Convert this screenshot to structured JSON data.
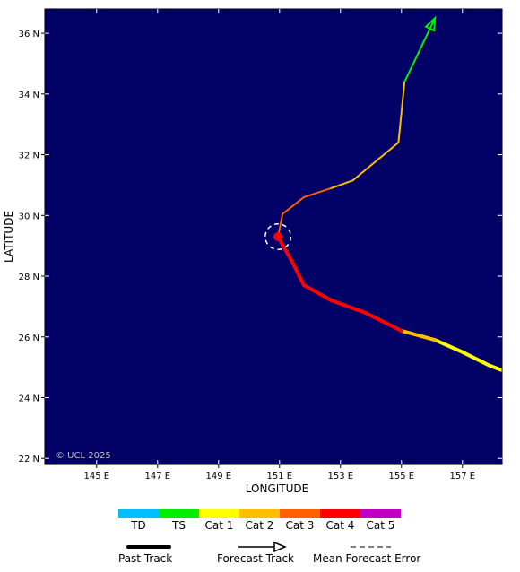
{
  "map": {
    "xlabel": "LONGITUDE",
    "ylabel": "LATITUDE",
    "copyright": "© UCL 2025",
    "background_color": "#000066",
    "lon_range": [
      143.3,
      158.3
    ],
    "lat_range": [
      21.8,
      36.8
    ],
    "lon_ticks": [
      {
        "value": 145,
        "label": "145 E"
      },
      {
        "value": 147,
        "label": "147 E"
      },
      {
        "value": 149,
        "label": "149 E"
      },
      {
        "value": 151,
        "label": "151 E"
      },
      {
        "value": 153,
        "label": "153 E"
      },
      {
        "value": 155,
        "label": "155 E"
      },
      {
        "value": 157,
        "label": "157 E"
      }
    ],
    "lat_ticks": [
      {
        "value": 22,
        "label": "22 N"
      },
      {
        "value": 24,
        "label": "24 N"
      },
      {
        "value": 26,
        "label": "26 N"
      },
      {
        "value": 28,
        "label": "28 N"
      },
      {
        "value": 30,
        "label": "30 N"
      },
      {
        "value": 32,
        "label": "32 N"
      },
      {
        "value": 34,
        "label": "34 N"
      },
      {
        "value": 36,
        "label": "36 N"
      }
    ],
    "past_track": [
      {
        "lon": 158.3,
        "lat": 24.9,
        "cat": "TS"
      },
      {
        "lon": 157.9,
        "lat": 25.05,
        "cat": "Cat 1"
      },
      {
        "lon": 157.0,
        "lat": 25.5,
        "cat": "Cat 1"
      },
      {
        "lon": 156.1,
        "lat": 25.9,
        "cat": "Cat 1"
      },
      {
        "lon": 155.0,
        "lat": 26.2,
        "cat": "Cat 2"
      },
      {
        "lon": 153.8,
        "lat": 26.8,
        "cat": "Cat 4"
      },
      {
        "lon": 152.7,
        "lat": 27.2,
        "cat": "Cat 4"
      },
      {
        "lon": 151.8,
        "lat": 27.7,
        "cat": "Cat 4"
      },
      {
        "lon": 151.4,
        "lat": 28.5,
        "cat": "Cat 4"
      },
      {
        "lon": 150.95,
        "lat": 29.3,
        "cat": "Cat 4"
      }
    ],
    "forecast_track": [
      {
        "lon": 150.95,
        "lat": 29.3,
        "cat": "Cat 3"
      },
      {
        "lon": 151.1,
        "lat": 30.05,
        "cat": "Cat 3"
      },
      {
        "lon": 151.8,
        "lat": 30.6,
        "cat": "Cat 3"
      },
      {
        "lon": 152.7,
        "lat": 30.9,
        "cat": "Cat 2"
      },
      {
        "lon": 153.4,
        "lat": 31.15,
        "cat": "Cat 2"
      },
      {
        "lon": 154.9,
        "lat": 32.4,
        "cat": "Cat 2"
      },
      {
        "lon": 155.1,
        "lat": 34.4,
        "cat": "TS"
      },
      {
        "lon": 156.1,
        "lat": 36.5,
        "cat": "TS"
      }
    ],
    "current_position": {
      "lon": 150.95,
      "lat": 29.3,
      "cat": "Cat 4"
    },
    "error_circle_radius_deg": 0.42
  },
  "legend": {
    "categories": [
      {
        "name": "TD",
        "color": "#00bfff"
      },
      {
        "name": "TS",
        "color": "#00ee00"
      },
      {
        "name": "Cat 1",
        "color": "#ffff00"
      },
      {
        "name": "Cat 2",
        "color": "#ffbf00"
      },
      {
        "name": "Cat 3",
        "color": "#ff6000"
      },
      {
        "name": "Cat 4",
        "color": "#ff0000"
      },
      {
        "name": "Cat 5",
        "color": "#c000c0"
      }
    ],
    "past_track_label": "Past Track",
    "forecast_track_label": "Forecast Track",
    "error_label": "Mean Forecast Error"
  }
}
